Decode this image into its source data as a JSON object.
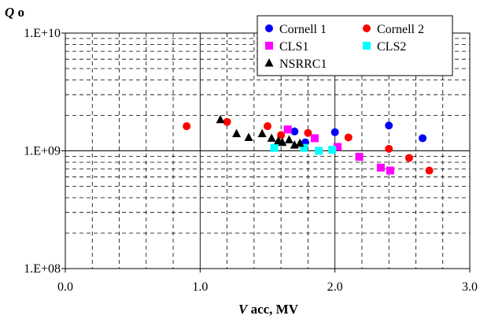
{
  "chart_data": {
    "type": "scatter",
    "title": "",
    "ylabel": {
      "italic": "Q",
      "rest": " o"
    },
    "xlabel": {
      "italic": "V",
      "rest": " acc, MV"
    },
    "xlim": [
      0,
      3
    ],
    "ylim": [
      100000000,
      10000000000
    ],
    "yscale": "log",
    "grid": true,
    "legend_position": "top-right",
    "x_ticks": [
      {
        "value": 0,
        "label": "0.0"
      },
      {
        "value": 1,
        "label": "1.0"
      },
      {
        "value": 2,
        "label": "2.0"
      },
      {
        "value": 3,
        "label": "3.0"
      }
    ],
    "y_ticks": [
      {
        "value": 100000000,
        "label": "1.E+08"
      },
      {
        "value": 1000000000,
        "label": "1.E+09"
      },
      {
        "value": 10000000000,
        "label": "1.E+10"
      }
    ],
    "series": [
      {
        "name": "Cornell 1",
        "marker": "circle",
        "color": "#0000ff",
        "points": [
          [
            1.7,
            1460000000.0
          ],
          [
            1.78,
            1180000000.0
          ],
          [
            2.0,
            1440000000.0
          ],
          [
            2.4,
            1640000000.0
          ],
          [
            2.65,
            1280000000.0
          ]
        ]
      },
      {
        "name": "Cornell 2",
        "marker": "circle",
        "color": "#ff0000",
        "points": [
          [
            0.9,
            1620000000.0
          ],
          [
            1.2,
            1760000000.0
          ],
          [
            1.5,
            1620000000.0
          ],
          [
            1.6,
            1360000000.0
          ],
          [
            1.8,
            1420000000.0
          ],
          [
            2.1,
            1300000000.0
          ],
          [
            2.4,
            1040000000.0
          ],
          [
            2.55,
            870000000.0
          ],
          [
            2.7,
            680000000.0
          ]
        ]
      },
      {
        "name": "CLS1",
        "marker": "square",
        "color": "#ff00ff",
        "points": [
          [
            1.65,
            1520000000.0
          ],
          [
            1.85,
            1280000000.0
          ],
          [
            2.02,
            1080000000.0
          ],
          [
            2.18,
            890000000.0
          ],
          [
            2.34,
            720000000.0
          ],
          [
            2.41,
            680000000.0
          ]
        ]
      },
      {
        "name": "CLS2",
        "marker": "square",
        "color": "#00ffff",
        "points": [
          [
            1.55,
            1060000000.0
          ],
          [
            1.77,
            1060000000.0
          ],
          [
            1.88,
            1000000000.0
          ],
          [
            1.98,
            1020000000.0
          ]
        ]
      },
      {
        "name": "NSRRC1",
        "marker": "triangle",
        "color": "#000000",
        "points": [
          [
            1.15,
            1840000000.0
          ],
          [
            1.27,
            1400000000.0
          ],
          [
            1.36,
            1300000000.0
          ],
          [
            1.46,
            1400000000.0
          ],
          [
            1.53,
            1280000000.0
          ],
          [
            1.58,
            1220000000.0
          ],
          [
            1.61,
            1180000000.0
          ],
          [
            1.66,
            1240000000.0
          ],
          [
            1.7,
            1120000000.0
          ],
          [
            1.74,
            1160000000.0
          ]
        ]
      }
    ]
  }
}
